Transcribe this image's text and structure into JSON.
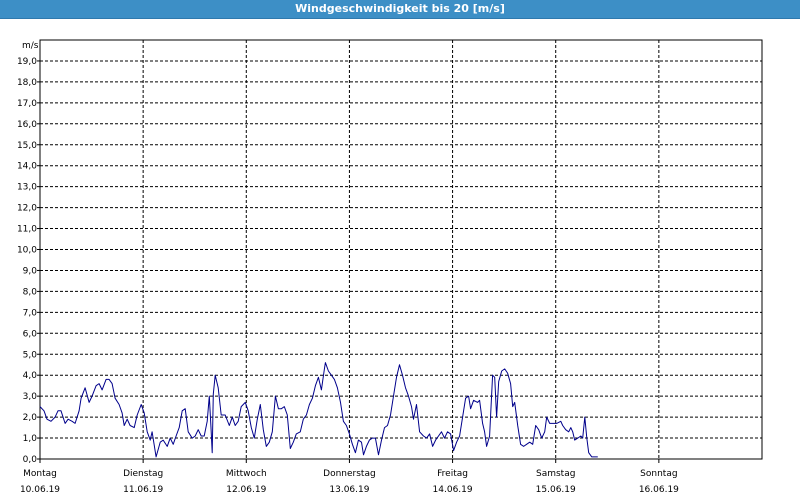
{
  "window": {
    "title": "Windgeschwindigkeit bis 20 [m/s]"
  },
  "chart_data": {
    "type": "line",
    "title": "Windgeschwindigkeit bis 20 [m/s]",
    "ylabel": "m/s",
    "ylim": [
      0,
      20
    ],
    "yticks": [
      "0,0",
      "1,0",
      "2,0",
      "3,0",
      "4,0",
      "5,0",
      "6,0",
      "7,0",
      "8,0",
      "9,0",
      "10,0",
      "11,0",
      "12,0",
      "13,0",
      "14,0",
      "15,0",
      "16,0",
      "17,0",
      "18,0",
      "19,0"
    ],
    "x_unit": "days since Monday 10.06.19 00:00",
    "xlim": [
      0,
      7
    ],
    "xticks": [
      {
        "day": "Montag",
        "date": "10.06.19"
      },
      {
        "day": "Dienstag",
        "date": "11.06.19"
      },
      {
        "day": "Mittwoch",
        "date": "12.06.19"
      },
      {
        "day": "Donnerstag",
        "date": "13.06.19"
      },
      {
        "day": "Freitag",
        "date": "14.06.19"
      },
      {
        "day": "Samstag",
        "date": "15.06.19"
      },
      {
        "day": "Sonntag",
        "date": "16.06.19"
      }
    ],
    "grid": true,
    "line_color": "#00008b",
    "series": [
      {
        "name": "",
        "points": [
          [
            0.0,
            2.5
          ],
          [
            0.039,
            2.3
          ],
          [
            0.068,
            1.9
          ],
          [
            0.107,
            1.8
          ],
          [
            0.146,
            2.0
          ],
          [
            0.175,
            2.3
          ],
          [
            0.204,
            2.3
          ],
          [
            0.243,
            1.7
          ],
          [
            0.272,
            1.9
          ],
          [
            0.311,
            1.8
          ],
          [
            0.34,
            1.7
          ],
          [
            0.379,
            2.3
          ],
          [
            0.398,
            2.9
          ],
          [
            0.437,
            3.4
          ],
          [
            0.476,
            2.7
          ],
          [
            0.505,
            3.0
          ],
          [
            0.544,
            3.5
          ],
          [
            0.573,
            3.6
          ],
          [
            0.602,
            3.3
          ],
          [
            0.641,
            3.8
          ],
          [
            0.67,
            3.8
          ],
          [
            0.699,
            3.6
          ],
          [
            0.728,
            2.9
          ],
          [
            0.767,
            2.6
          ],
          [
            0.796,
            2.2
          ],
          [
            0.816,
            1.6
          ],
          [
            0.845,
            1.9
          ],
          [
            0.874,
            1.6
          ],
          [
            0.913,
            1.5
          ],
          [
            0.942,
            2.1
          ],
          [
            0.981,
            2.6
          ],
          [
            1.01,
            2.2
          ],
          [
            1.039,
            1.3
          ],
          [
            1.068,
            0.9
          ],
          [
            1.087,
            1.3
          ],
          [
            1.126,
            0.1
          ],
          [
            1.165,
            0.8
          ],
          [
            1.194,
            0.9
          ],
          [
            1.233,
            0.6
          ],
          [
            1.262,
            1.0
          ],
          [
            1.291,
            0.7
          ],
          [
            1.32,
            1.1
          ],
          [
            1.35,
            1.5
          ],
          [
            1.379,
            2.3
          ],
          [
            1.408,
            2.4
          ],
          [
            1.437,
            1.3
          ],
          [
            1.476,
            1.0
          ],
          [
            1.505,
            1.1
          ],
          [
            1.534,
            1.4
          ],
          [
            1.563,
            1.1
          ],
          [
            1.592,
            1.1
          ],
          [
            1.621,
            1.8
          ],
          [
            1.641,
            3.0
          ],
          [
            1.65,
            2.2
          ],
          [
            1.66,
            1.3
          ],
          [
            1.67,
            0.3
          ],
          [
            1.68,
            3.1
          ],
          [
            1.699,
            4.0
          ],
          [
            1.728,
            3.4
          ],
          [
            1.757,
            2.1
          ],
          [
            1.796,
            2.1
          ],
          [
            1.835,
            1.6
          ],
          [
            1.864,
            2.0
          ],
          [
            1.893,
            1.6
          ],
          [
            1.922,
            1.8
          ],
          [
            1.951,
            2.5
          ],
          [
            1.99,
            2.7
          ],
          [
            2.019,
            2.3
          ],
          [
            2.049,
            1.5
          ],
          [
            2.078,
            1.0
          ],
          [
            2.107,
            1.9
          ],
          [
            2.136,
            2.6
          ],
          [
            2.165,
            1.4
          ],
          [
            2.194,
            0.6
          ],
          [
            2.223,
            0.8
          ],
          [
            2.252,
            1.3
          ],
          [
            2.282,
            3.0
          ],
          [
            2.311,
            2.4
          ],
          [
            2.34,
            2.4
          ],
          [
            2.369,
            2.5
          ],
          [
            2.398,
            2.1
          ],
          [
            2.427,
            0.5
          ],
          [
            2.456,
            0.8
          ],
          [
            2.485,
            1.2
          ],
          [
            2.524,
            1.3
          ],
          [
            2.553,
            1.9
          ],
          [
            2.583,
            2.1
          ],
          [
            2.612,
            2.6
          ],
          [
            2.641,
            2.9
          ],
          [
            2.67,
            3.5
          ],
          [
            2.699,
            3.9
          ],
          [
            2.728,
            3.3
          ],
          [
            2.757,
            4.3
          ],
          [
            2.767,
            4.6
          ],
          [
            2.796,
            4.2
          ],
          [
            2.825,
            4.0
          ],
          [
            2.854,
            3.8
          ],
          [
            2.883,
            3.4
          ],
          [
            2.913,
            2.7
          ],
          [
            2.942,
            1.8
          ],
          [
            2.971,
            1.6
          ],
          [
            3.0,
            1.2
          ],
          [
            3.029,
            0.7
          ],
          [
            3.058,
            0.3
          ],
          [
            3.087,
            0.9
          ],
          [
            3.117,
            0.8
          ],
          [
            3.136,
            0.2
          ],
          [
            3.165,
            0.6
          ],
          [
            3.194,
            0.9
          ],
          [
            3.223,
            1.0
          ],
          [
            3.252,
            1.0
          ],
          [
            3.282,
            0.2
          ],
          [
            3.311,
            0.9
          ],
          [
            3.34,
            1.5
          ],
          [
            3.369,
            1.6
          ],
          [
            3.398,
            2.1
          ],
          [
            3.427,
            3.0
          ],
          [
            3.456,
            3.9
          ],
          [
            3.485,
            4.5
          ],
          [
            3.515,
            4.0
          ],
          [
            3.544,
            3.4
          ],
          [
            3.573,
            3.0
          ],
          [
            3.602,
            2.5
          ],
          [
            3.621,
            1.9
          ],
          [
            3.65,
            2.6
          ],
          [
            3.68,
            1.3
          ],
          [
            3.718,
            1.1
          ],
          [
            3.748,
            1.0
          ],
          [
            3.777,
            1.2
          ],
          [
            3.806,
            0.6
          ],
          [
            3.835,
            0.9
          ],
          [
            3.864,
            1.1
          ],
          [
            3.893,
            1.3
          ],
          [
            3.922,
            1.0
          ],
          [
            3.951,
            1.3
          ],
          [
            3.981,
            1.2
          ],
          [
            4.01,
            0.4
          ],
          [
            4.039,
            0.8
          ],
          [
            4.068,
            1.1
          ],
          [
            4.097,
            2.0
          ],
          [
            4.126,
            2.9
          ],
          [
            4.155,
            3.0
          ],
          [
            4.175,
            2.4
          ],
          [
            4.204,
            2.8
          ],
          [
            4.243,
            2.7
          ],
          [
            4.262,
            2.8
          ],
          [
            4.291,
            1.7
          ],
          [
            4.311,
            1.3
          ],
          [
            4.33,
            0.6
          ],
          [
            4.359,
            1.1
          ],
          [
            4.388,
            4.0
          ],
          [
            4.408,
            3.9
          ],
          [
            4.427,
            2.0
          ],
          [
            4.447,
            3.7
          ],
          [
            4.476,
            4.2
          ],
          [
            4.505,
            4.3
          ],
          [
            4.534,
            4.1
          ],
          [
            4.563,
            3.6
          ],
          [
            4.583,
            2.5
          ],
          [
            4.602,
            2.7
          ],
          [
            4.631,
            1.6
          ],
          [
            4.66,
            0.7
          ],
          [
            4.689,
            0.6
          ],
          [
            4.718,
            0.7
          ],
          [
            4.748,
            0.8
          ],
          [
            4.777,
            0.7
          ],
          [
            4.806,
            1.6
          ],
          [
            4.835,
            1.4
          ],
          [
            4.864,
            1.0
          ],
          [
            4.893,
            1.3
          ],
          [
            4.913,
            2.0
          ],
          [
            4.942,
            1.7
          ],
          [
            4.981,
            1.7
          ],
          [
            5.01,
            1.7
          ],
          [
            5.049,
            1.8
          ],
          [
            5.068,
            1.6
          ],
          [
            5.097,
            1.4
          ],
          [
            5.126,
            1.3
          ],
          [
            5.146,
            1.5
          ],
          [
            5.165,
            1.3
          ],
          [
            5.184,
            0.9
          ],
          [
            5.214,
            1.0
          ],
          [
            5.243,
            1.1
          ],
          [
            5.262,
            1.0
          ],
          [
            5.282,
            2.0
          ],
          [
            5.301,
            1.0
          ],
          [
            5.32,
            0.3
          ],
          [
            5.35,
            0.1
          ],
          [
            5.379,
            0.1
          ],
          [
            5.408,
            0.1
          ]
        ]
      }
    ]
  }
}
